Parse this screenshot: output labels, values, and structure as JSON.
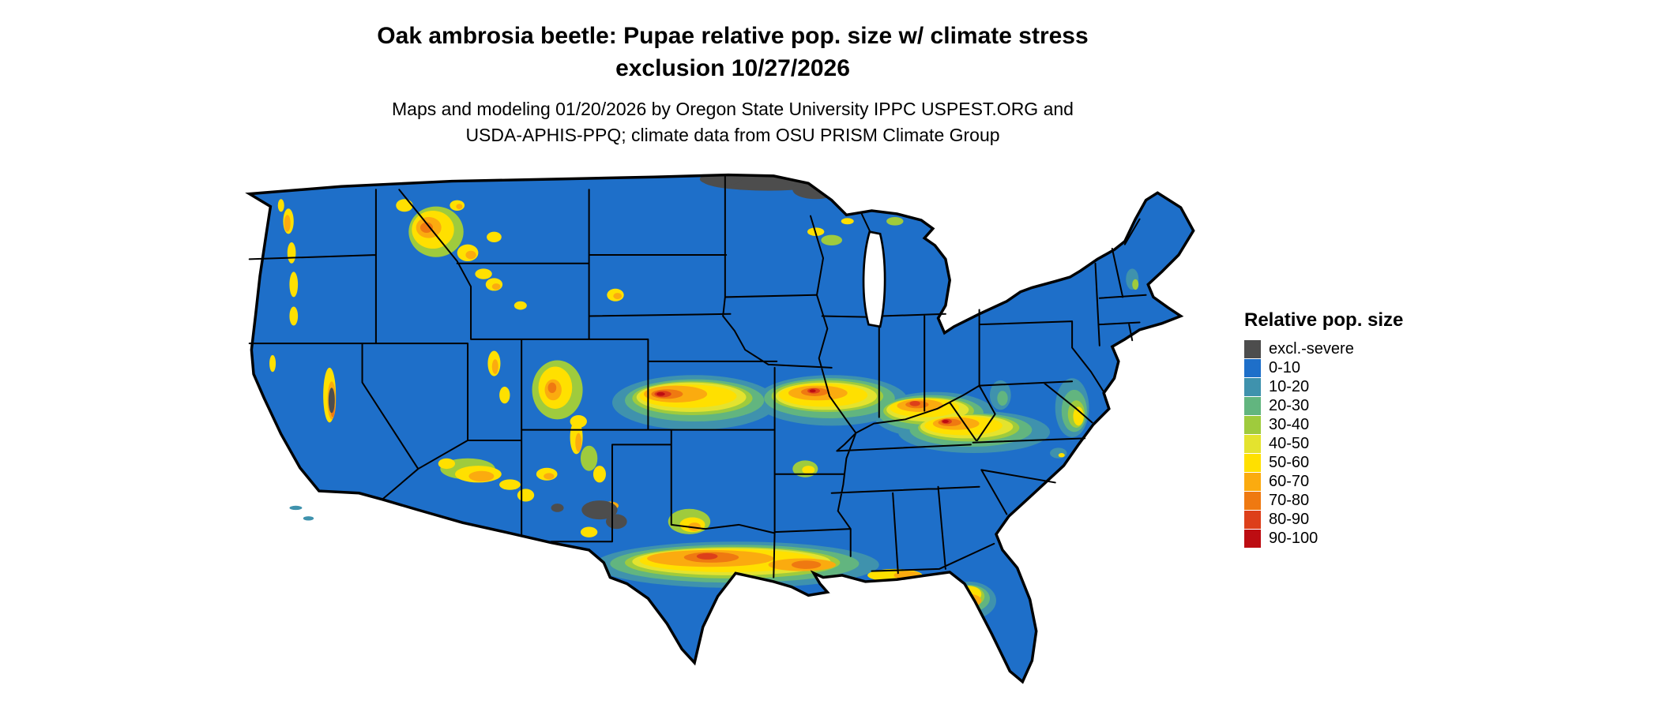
{
  "title": {
    "line1": "Oak ambrosia beetle: Pupae relative pop. size w/ climate stress",
    "line2": "exclusion 10/27/2026"
  },
  "subtitle": {
    "line1": "Maps and modeling 01/20/2026 by Oregon State University IPPC USPEST.ORG and",
    "line2": "USDA-APHIS-PPQ; climate data from OSU PRISM Climate Group"
  },
  "map": {
    "region": "Contiguous United States",
    "background_color": "#ffffff",
    "border_color": "#000000"
  },
  "legend": {
    "title": "Relative pop. size",
    "items": [
      {
        "label": "excl.-severe",
        "color": "#4d4d4d"
      },
      {
        "label": "0-10",
        "color": "#1e6fc9"
      },
      {
        "label": "10-20",
        "color": "#3f92ad"
      },
      {
        "label": "20-30",
        "color": "#62b57f"
      },
      {
        "label": "30-40",
        "color": "#9fcb3d"
      },
      {
        "label": "40-50",
        "color": "#e4e32e"
      },
      {
        "label": "50-60",
        "color": "#ffe000"
      },
      {
        "label": "60-70",
        "color": "#fbab0f"
      },
      {
        "label": "70-80",
        "color": "#ef7911"
      },
      {
        "label": "80-90",
        "color": "#dd3f1a"
      },
      {
        "label": "90-100",
        "color": "#bd0d12"
      }
    ]
  }
}
